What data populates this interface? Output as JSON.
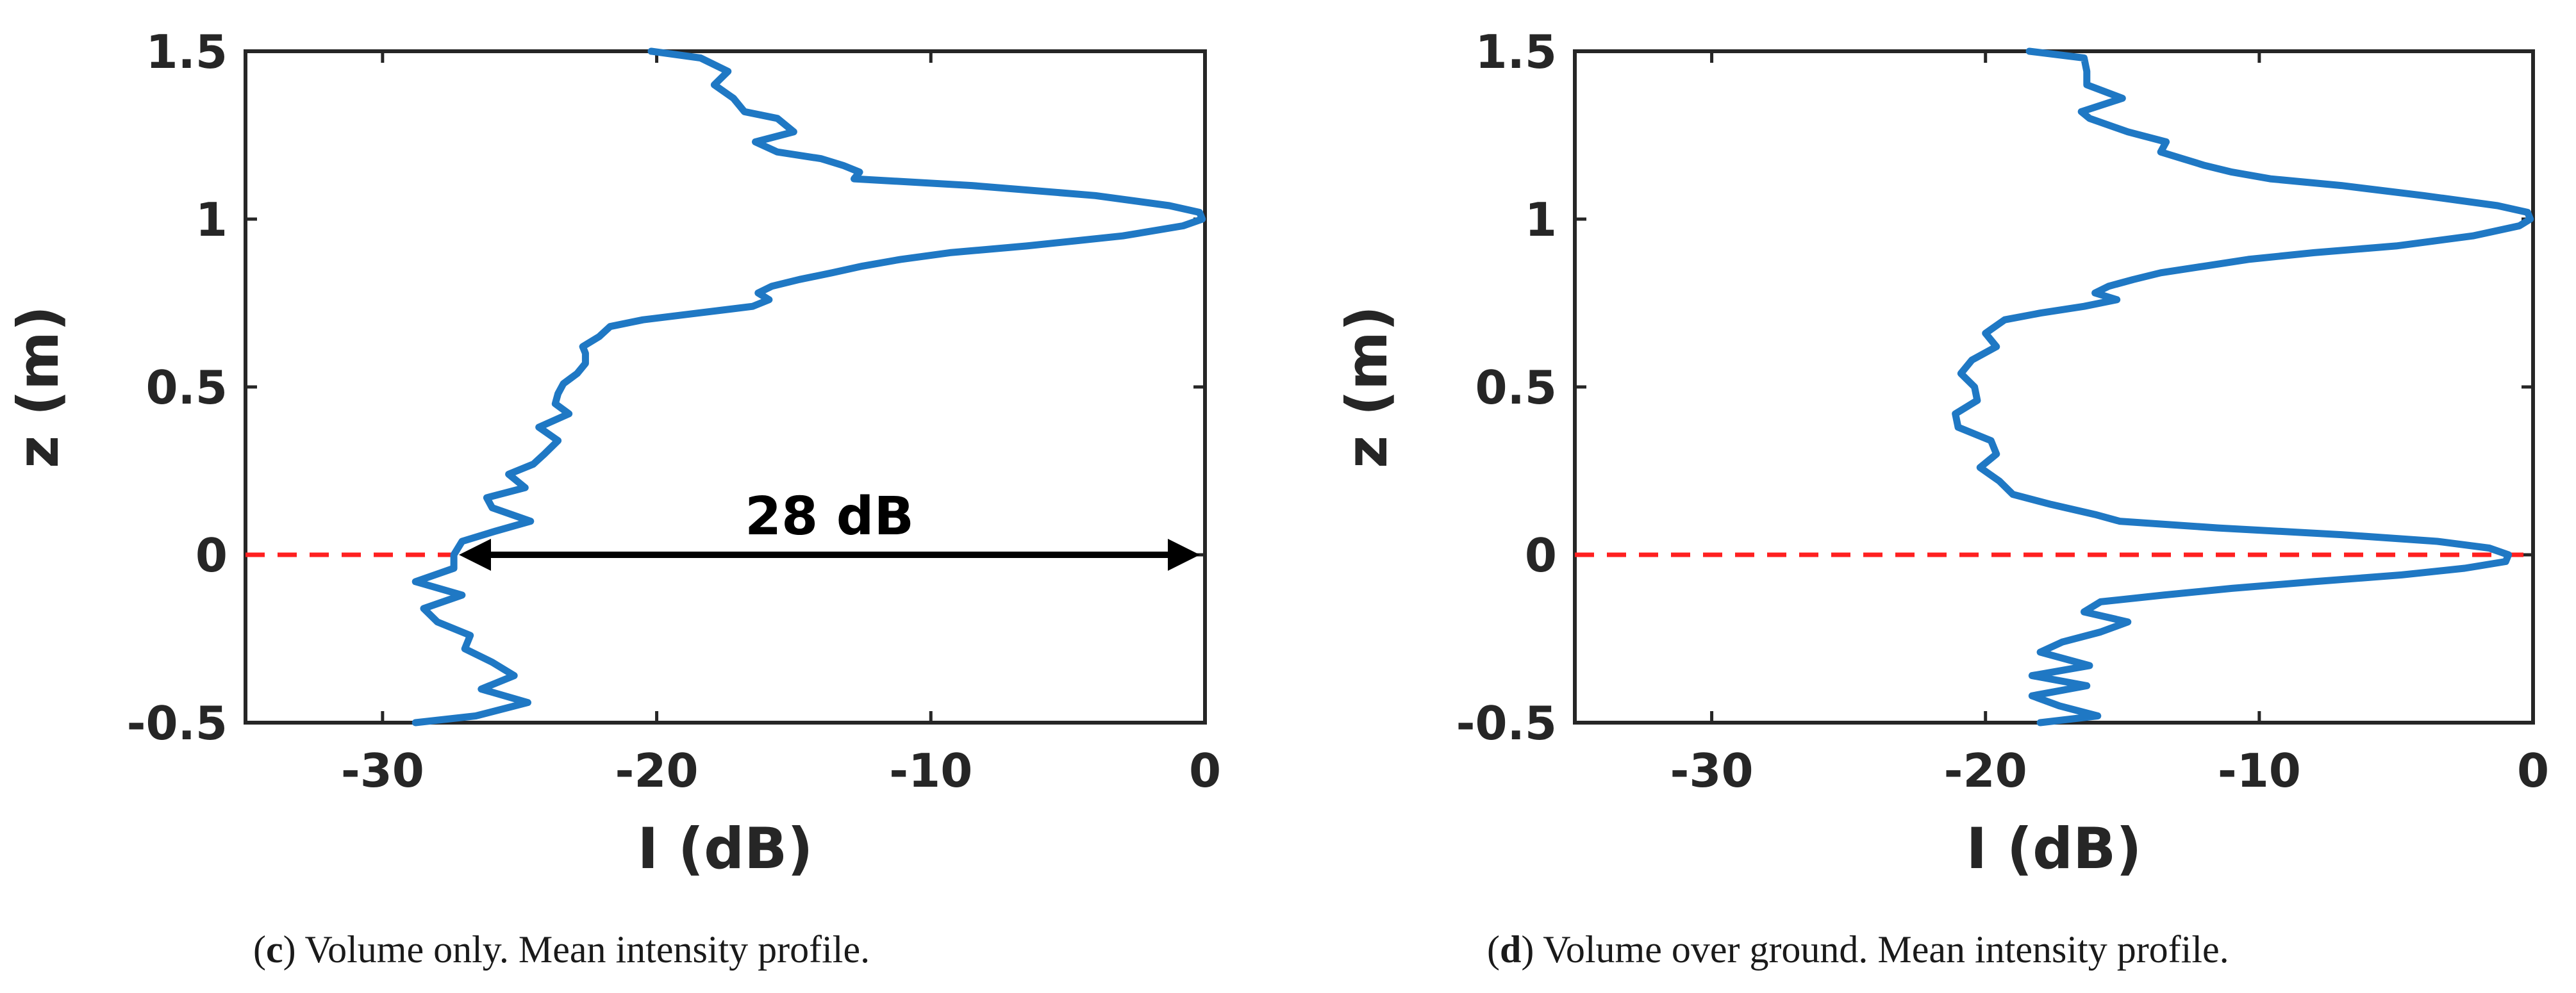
{
  "colors": {
    "curve": "#1f78c4",
    "ground": "#ff2020",
    "axis": "#262626",
    "arrow": "#000000"
  },
  "chart_data": [
    {
      "type": "line",
      "panel_letter": "c",
      "caption": "Volume only. Mean intensity profile.",
      "xlabel": "I (dB)",
      "ylabel": "z (m)",
      "xlim": [
        -35,
        0
      ],
      "ylim": [
        -0.5,
        1.5
      ],
      "xticks": [
        -30,
        -20,
        -10,
        0
      ],
      "yticks": [
        -0.5,
        0,
        0.5,
        1,
        1.5
      ],
      "xtick_labels": [
        "-30",
        "-20",
        "-10",
        "0"
      ],
      "ytick_labels": [
        "-0.5",
        "0",
        "0.5",
        "1",
        "1.5"
      ],
      "ground_line_z": 0,
      "annotation": {
        "text": "28 dB",
        "x_start": -27.4,
        "x_end": 0,
        "z": 0
      },
      "series": [
        {
          "name": "Mean intensity",
          "z": [
            1.5,
            1.48,
            1.44,
            1.4,
            1.36,
            1.32,
            1.3,
            1.26,
            1.23,
            1.2,
            1.18,
            1.16,
            1.14,
            1.12,
            1.1,
            1.07,
            1.04,
            1.02,
            1.0,
            0.98,
            0.95,
            0.92,
            0.9,
            0.88,
            0.86,
            0.84,
            0.82,
            0.8,
            0.78,
            0.76,
            0.74,
            0.72,
            0.7,
            0.68,
            0.65,
            0.62,
            0.6,
            0.57,
            0.54,
            0.51,
            0.48,
            0.45,
            0.42,
            0.38,
            0.34,
            0.3,
            0.27,
            0.24,
            0.2,
            0.17,
            0.14,
            0.1,
            0.07,
            0.04,
            0.0,
            -0.04,
            -0.08,
            -0.12,
            -0.16,
            -0.2,
            -0.24,
            -0.28,
            -0.32,
            -0.36,
            -0.4,
            -0.44,
            -0.48,
            -0.5
          ],
          "values": [
            -20.2,
            -18.4,
            -17.4,
            -17.9,
            -17.2,
            -16.8,
            -15.6,
            -15.0,
            -16.4,
            -15.6,
            -14.0,
            -13.2,
            -12.6,
            -12.8,
            -8.5,
            -4.0,
            -1.3,
            -0.2,
            -0.1,
            -0.8,
            -3.0,
            -6.5,
            -9.3,
            -11.1,
            -12.5,
            -13.6,
            -14.8,
            -15.8,
            -16.3,
            -15.9,
            -16.5,
            -18.5,
            -20.5,
            -21.7,
            -22.1,
            -22.7,
            -22.6,
            -22.6,
            -22.9,
            -23.4,
            -23.6,
            -23.7,
            -23.2,
            -24.3,
            -23.6,
            -24.1,
            -24.5,
            -25.4,
            -24.8,
            -26.2,
            -26.0,
            -24.6,
            -25.9,
            -27.1,
            -27.4,
            -27.4,
            -28.8,
            -27.1,
            -28.5,
            -28.0,
            -26.8,
            -27.0,
            -26.0,
            -25.2,
            -26.4,
            -24.7,
            -26.6,
            -28.8
          ]
        }
      ]
    },
    {
      "type": "line",
      "panel_letter": "d",
      "caption": "Volume over ground. Mean intensity profile.",
      "xlabel": "I (dB)",
      "ylabel": "z (m)",
      "xlim": [
        -35,
        0
      ],
      "ylim": [
        -0.5,
        1.5
      ],
      "xticks": [
        -30,
        -20,
        -10,
        0
      ],
      "yticks": [
        -0.5,
        0,
        0.5,
        1,
        1.5
      ],
      "xtick_labels": [
        "-30",
        "-20",
        "-10",
        "0"
      ],
      "ytick_labels": [
        "-0.5",
        "0",
        "0.5",
        "1",
        "1.5"
      ],
      "ground_line_z": 0,
      "series": [
        {
          "name": "Mean intensity",
          "z": [
            1.5,
            1.48,
            1.44,
            1.4,
            1.36,
            1.32,
            1.3,
            1.26,
            1.23,
            1.2,
            1.18,
            1.16,
            1.14,
            1.12,
            1.1,
            1.07,
            1.04,
            1.02,
            1.0,
            0.98,
            0.95,
            0.92,
            0.9,
            0.88,
            0.86,
            0.84,
            0.82,
            0.8,
            0.78,
            0.76,
            0.74,
            0.72,
            0.7,
            0.66,
            0.62,
            0.58,
            0.54,
            0.5,
            0.46,
            0.42,
            0.38,
            0.34,
            0.3,
            0.26,
            0.22,
            0.18,
            0.15,
            0.12,
            0.1,
            0.08,
            0.06,
            0.04,
            0.02,
            0.0,
            -0.02,
            -0.04,
            -0.06,
            -0.08,
            -0.1,
            -0.12,
            -0.14,
            -0.17,
            -0.2,
            -0.23,
            -0.26,
            -0.29,
            -0.33,
            -0.36,
            -0.39,
            -0.42,
            -0.45,
            -0.48,
            -0.5
          ],
          "values": [
            -18.4,
            -16.4,
            -16.3,
            -16.3,
            -15.0,
            -16.5,
            -16.2,
            -14.8,
            -13.4,
            -13.6,
            -12.8,
            -12.0,
            -11.0,
            -9.6,
            -7.0,
            -4.0,
            -1.3,
            -0.2,
            -0.1,
            -0.5,
            -2.2,
            -5.0,
            -8.0,
            -10.4,
            -12.0,
            -13.6,
            -14.6,
            -15.5,
            -16.0,
            -15.2,
            -16.4,
            -18.0,
            -19.3,
            -20.0,
            -19.6,
            -20.5,
            -20.9,
            -20.4,
            -20.3,
            -21.1,
            -21.0,
            -19.8,
            -19.6,
            -20.2,
            -19.5,
            -19.0,
            -17.6,
            -16.0,
            -15.1,
            -11.5,
            -7.0,
            -3.5,
            -1.6,
            -0.9,
            -1.0,
            -2.5,
            -4.8,
            -8.0,
            -11.0,
            -13.5,
            -15.8,
            -16.4,
            -14.8,
            -15.8,
            -17.2,
            -18.0,
            -16.2,
            -18.3,
            -16.3,
            -18.3,
            -17.3,
            -15.9,
            -18.0
          ]
        }
      ]
    }
  ]
}
